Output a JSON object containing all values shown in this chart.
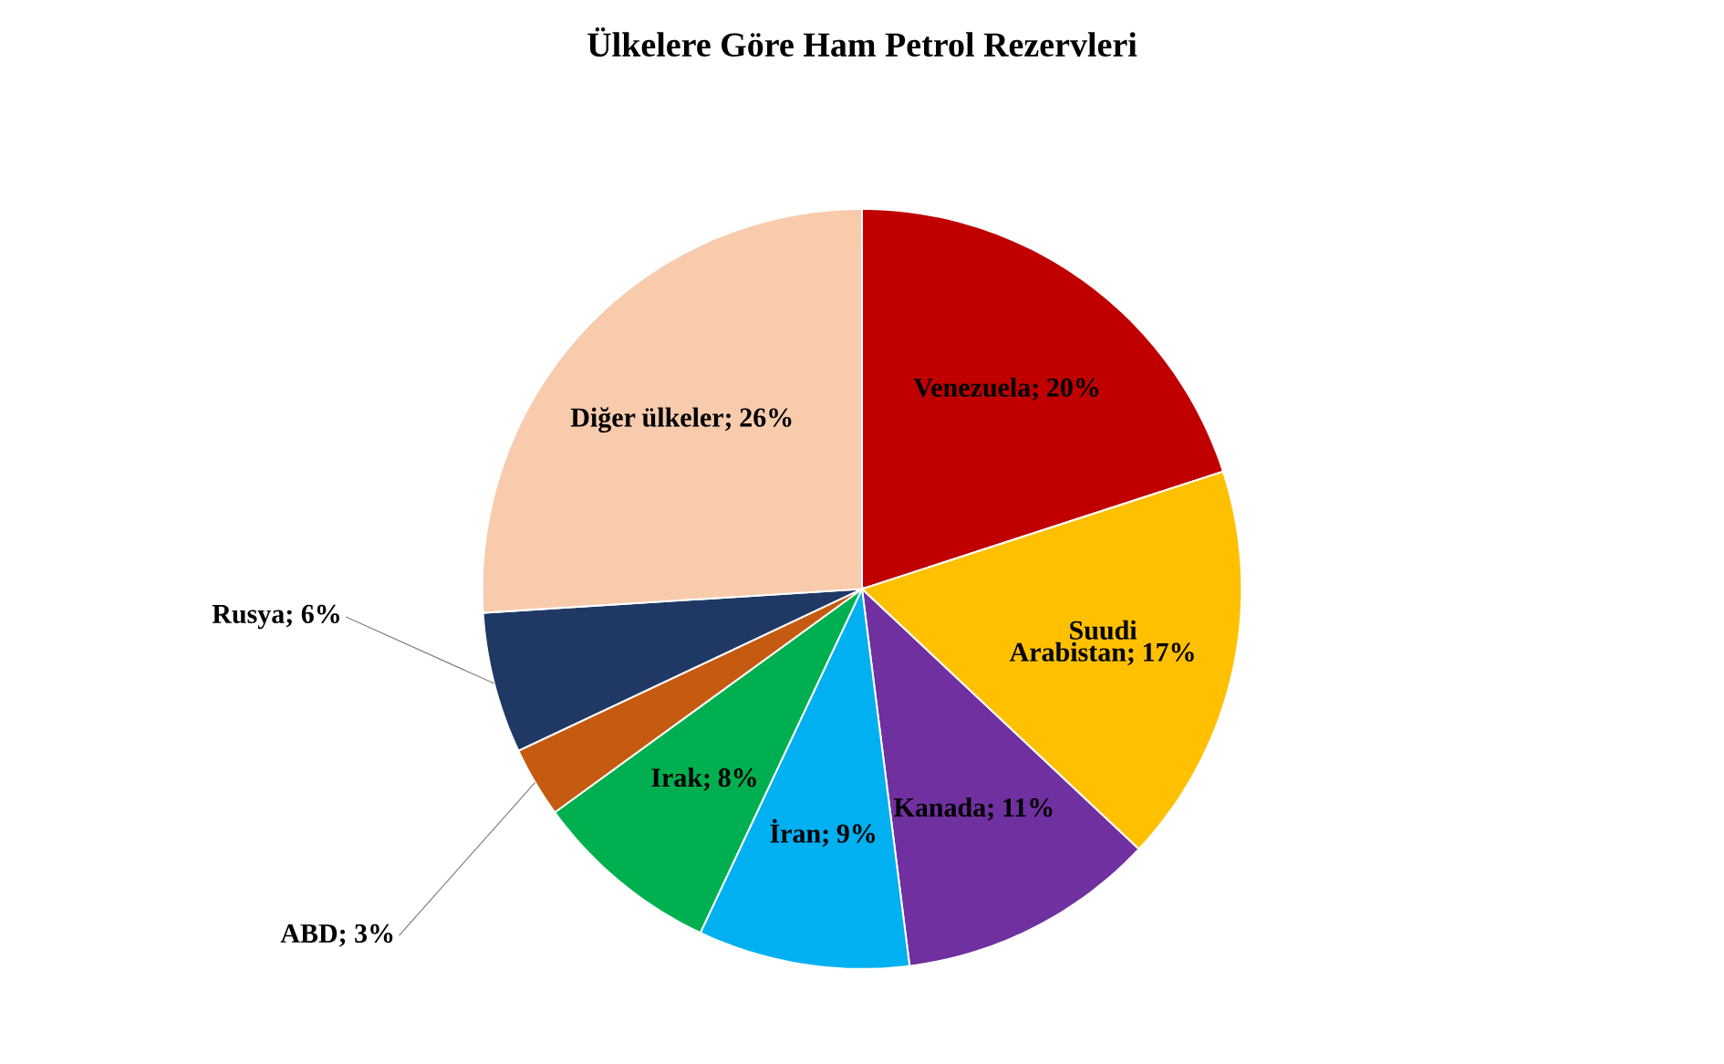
{
  "chart_data": {
    "type": "pie",
    "title": "Ülkelere Göre Ham Petrol Rezervleri",
    "categories": [
      "Venezuela",
      "Suudi Arabistan",
      "Kanada",
      "İran",
      "Irak",
      "ABD",
      "Rusya",
      "Diğer ülkeler"
    ],
    "values": [
      20,
      17,
      11,
      9,
      8,
      3,
      6,
      26
    ],
    "value_labels": [
      "; 20%",
      "; 17%",
      "; 11%",
      "; 9%",
      "; 8%",
      "; 3%",
      "; 6%",
      "; 26%"
    ],
    "colors": [
      "#c00000",
      "#ffc000",
      "#7030a0",
      "#00b0f0",
      "#00b050",
      "#c55a11",
      "#203864",
      "#f8cbad"
    ]
  }
}
